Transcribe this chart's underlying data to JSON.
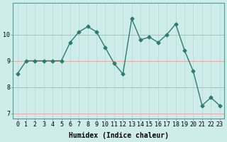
{
  "x": [
    0,
    1,
    2,
    3,
    4,
    5,
    6,
    7,
    8,
    9,
    10,
    11,
    12,
    13,
    14,
    15,
    16,
    17,
    18,
    19,
    20,
    21,
    22,
    23
  ],
  "y": [
    8.5,
    9.0,
    9.0,
    9.0,
    9.0,
    9.0,
    9.7,
    10.1,
    10.3,
    10.1,
    9.5,
    8.9,
    8.5,
    10.6,
    9.8,
    9.9,
    9.7,
    10.0,
    10.4,
    9.4,
    8.6,
    7.3,
    7.6,
    7.3
  ],
  "line_color": "#2d7d6e",
  "marker": "D",
  "markersize": 2.5,
  "linewidth": 1.0,
  "background_color": "#ceecea",
  "grid_color_h": "#e8a8a8",
  "grid_color_v": "#b8d8d5",
  "xlabel": "Humidex (Indice chaleur)",
  "xlabel_fontsize": 7,
  "ylim": [
    6.8,
    11.2
  ],
  "xlim": [
    -0.5,
    23.5
  ],
  "yticks": [
    7,
    8,
    9,
    10
  ],
  "xticks": [
    0,
    1,
    2,
    3,
    4,
    5,
    6,
    7,
    8,
    9,
    10,
    11,
    12,
    13,
    14,
    15,
    16,
    17,
    18,
    19,
    20,
    21,
    22,
    23
  ],
  "tick_fontsize": 6.0
}
